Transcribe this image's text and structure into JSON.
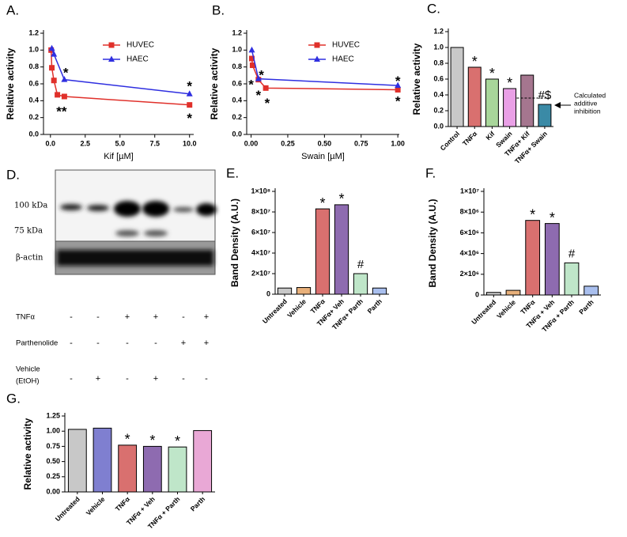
{
  "chart_data": [
    {
      "type": "line",
      "panel": "A.",
      "xlabel": "Kif [µM]",
      "ylabel": "Relative activity",
      "xlim": [
        -0.5,
        10.3
      ],
      "xticks": [
        {
          "value": 0,
          "label": "0.0"
        },
        2.5,
        {
          "value": 5,
          "label": "5.0"
        },
        7.5,
        {
          "value": 10,
          "label": "10.0"
        }
      ],
      "ylim": [
        0,
        1.2
      ],
      "yticks": [
        {
          "value": 0,
          "label": "0.0"
        },
        0.2,
        0.4,
        0.6,
        0.8,
        {
          "value": 1,
          "label": "1.0"
        },
        1.2
      ],
      "legend": "upper right",
      "series": [
        {
          "name": "HUVEC",
          "color": "#e0302a",
          "marker": "square",
          "x": [
            0.05,
            0.1,
            0.25,
            0.5,
            1,
            10
          ],
          "values": [
            1.0,
            0.79,
            0.64,
            0.47,
            0.45,
            0.35
          ]
        },
        {
          "name": "HAEC",
          "color": "#2f2fe0",
          "marker": "triangle",
          "x": [
            0.1,
            0.25,
            1,
            10
          ],
          "values": [
            1.02,
            0.95,
            0.65,
            0.48
          ]
        }
      ],
      "annotations": [
        {
          "text": "*",
          "x": 1.1,
          "y": 0.76
        },
        {
          "text": "**",
          "x": 0.8,
          "y": 0.3
        },
        {
          "text": "*",
          "x": 10,
          "y": 0.6
        },
        {
          "text": "*",
          "x": 10,
          "y": 0.22
        }
      ]
    },
    {
      "type": "line",
      "panel": "B.",
      "xlabel": "Swain [µM]",
      "ylabel": "Relative activity",
      "xlim": [
        -0.03,
        1.01
      ],
      "xticks": [
        {
          "value": 0,
          "label": "0.00"
        },
        0.25,
        {
          "value": 0.5,
          "label": "0.50"
        },
        0.75,
        {
          "value": 1,
          "label": "1.00"
        }
      ],
      "ylim": [
        0,
        1.2
      ],
      "yticks": [
        {
          "value": 0,
          "label": "0.0"
        },
        0.2,
        0.4,
        0.6,
        0.8,
        {
          "value": 1,
          "label": "1.0"
        },
        1.2
      ],
      "legend": "upper right",
      "series": [
        {
          "name": "HUVEC",
          "color": "#e0302a",
          "marker": "square",
          "x": [
            0.005,
            0.01,
            0.05,
            0.1,
            1
          ],
          "values": [
            0.9,
            0.82,
            0.65,
            0.55,
            0.53
          ]
        },
        {
          "name": "HAEC",
          "color": "#2f2fe0",
          "marker": "triangle",
          "x": [
            0.005,
            0.05,
            1
          ],
          "values": [
            1.0,
            0.66,
            0.58
          ]
        }
      ],
      "annotations": [
        {
          "text": "*",
          "x": 0.0,
          "y": 0.62
        },
        {
          "text": "*",
          "x": 0.07,
          "y": 0.73
        },
        {
          "text": "*",
          "x": 0.05,
          "y": 0.49
        },
        {
          "text": "*",
          "x": 0.11,
          "y": 0.4
        },
        {
          "text": "*",
          "x": 1,
          "y": 0.66
        },
        {
          "text": "*",
          "x": 1,
          "y": 0.42
        }
      ]
    },
    {
      "type": "bar",
      "panel": "C.",
      "ylabel": "Relative activity",
      "categories": [
        "Control",
        "TNFα",
        "Kif",
        "Swain",
        "TNFα+ Kif",
        "TNFα+ Swain"
      ],
      "values": [
        1.0,
        0.75,
        0.6,
        0.48,
        0.65,
        0.28
      ],
      "colors": [
        "#c8c8c8",
        "#d9706f",
        "#a8d69a",
        "#e9a0e6",
        "#a5768f",
        "#3a8aa6"
      ],
      "significance": [
        null,
        "*",
        "*",
        "*",
        null,
        "#$"
      ],
      "ylim": [
        0,
        1.2
      ],
      "yticks": [
        {
          "value": 0,
          "label": "0.0"
        },
        0.2,
        0.4,
        0.6,
        0.8,
        {
          "value": 1,
          "label": "1.0"
        },
        1.2
      ],
      "additive_level": 0.36,
      "annotation_lines": [
        "Calculated",
        "additive",
        "inhibition"
      ]
    },
    {
      "type": "bar",
      "panel": "E.",
      "ylabel": "Band  Density (A.U.)",
      "categories": [
        "Untreated",
        "Vehicle",
        "TNFα",
        "TNFα+ Veh",
        "TNFα+ Parth",
        "Parth"
      ],
      "values": [
        6000000,
        6500000,
        83000000,
        87000000,
        20000000,
        6000000
      ],
      "colors": [
        "#c8c8c8",
        "#e8b07a",
        "#d9706f",
        "#8e6bb0",
        "#bfe6c9",
        "#a9bfee"
      ],
      "significance": [
        null,
        null,
        "*",
        "*",
        "#",
        null
      ],
      "ylim": [
        0,
        100000000
      ],
      "yticks": [
        0,
        {
          "value": 20000000,
          "label": "2×10⁷"
        },
        {
          "value": 40000000,
          "label": "4×10⁷"
        },
        {
          "value": 60000000,
          "label": "6×10⁷"
        },
        {
          "value": 80000000,
          "label": "8×10⁷"
        },
        {
          "value": 100000000,
          "label": "1×10⁸"
        }
      ]
    },
    {
      "type": "bar",
      "panel": "F.",
      "ylabel": "Band Density (A.U.)",
      "categories": [
        "Untreated",
        "Vehicle",
        "TNFα",
        "TNFα + Veh",
        "TNFα + Parth",
        "Parth"
      ],
      "values": [
        250000,
        450000,
        7200000,
        6900000,
        3100000,
        850000
      ],
      "colors": [
        "#c8c8c8",
        "#e8b07a",
        "#d9706f",
        "#8e6bb0",
        "#bfe6c9",
        "#a9bfee"
      ],
      "significance": [
        null,
        null,
        "*",
        "*",
        "#",
        null
      ],
      "ylim": [
        0,
        10000000
      ],
      "yticks": [
        0,
        {
          "value": 2000000,
          "label": "2×10⁶"
        },
        {
          "value": 4000000,
          "label": "4×10⁶"
        },
        {
          "value": 6000000,
          "label": "6×10⁶"
        },
        {
          "value": 8000000,
          "label": "8×10⁶"
        },
        {
          "value": 10000000,
          "label": "1×10⁷"
        }
      ]
    },
    {
      "type": "bar",
      "panel": "G.",
      "ylabel": "Relative activity",
      "categories": [
        "Untreated",
        "Vehicle",
        "TNFα",
        "TNFα + Veh",
        "TNFα + Parth",
        "Parth"
      ],
      "values": [
        1.03,
        1.05,
        0.77,
        0.75,
        0.74,
        1.01
      ],
      "colors": [
        "#c8c8c8",
        "#7f7fd0",
        "#d9706f",
        "#8e6bb0",
        "#bfe6c9",
        "#e9a8d6"
      ],
      "significance": [
        null,
        null,
        "*",
        "*",
        "*",
        null
      ],
      "ylim": [
        0,
        1.25
      ],
      "yticks": [
        {
          "value": 0,
          "label": "0.00"
        },
        0.25,
        {
          "value": 0.5,
          "label": "0.50"
        },
        0.75,
        {
          "value": 1,
          "label": "1.00"
        },
        1.25
      ]
    }
  ],
  "blot": {
    "panel": "D.",
    "markers": [
      "100 kDa",
      "75 kDa"
    ],
    "loading_control": "β-actin",
    "conditions": [
      {
        "label": [
          "TNFα"
        ],
        "signs": [
          "-",
          "-",
          "+",
          "+",
          "-",
          "+"
        ]
      },
      {
        "label": [
          "Parthenolide"
        ],
        "signs": [
          "-",
          "-",
          "-",
          "-",
          "+",
          "+"
        ]
      },
      {
        "label": [
          "Vehicle",
          "(EtOH)"
        ],
        "signs": [
          "-",
          "+",
          "-",
          "+",
          "-",
          "-"
        ]
      }
    ]
  }
}
